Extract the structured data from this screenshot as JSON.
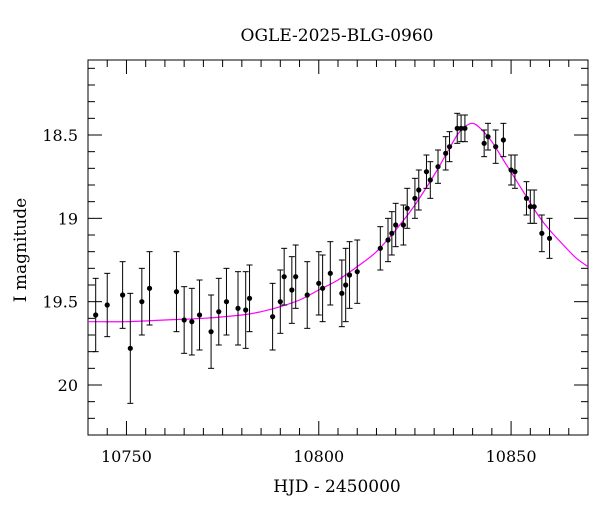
{
  "chart_data": {
    "type": "scatter",
    "title": "OGLE-2025-BLG-0960",
    "xlabel": "HJD - 2450000",
    "ylabel": "I magnitude",
    "xlim": [
      10740,
      10870
    ],
    "ylim": [
      20.3,
      18.05
    ],
    "y_inverted": true,
    "x_ticks": [
      10750,
      10800,
      10850
    ],
    "y_ticks": [
      18.5,
      19,
      19.5,
      20
    ],
    "grid": false,
    "colors": {
      "model": "#ff00ff",
      "points": "#000000",
      "errorbars": "#000000"
    },
    "series": [
      {
        "kind": "points_with_errors",
        "x": [
          10742,
          10745,
          10749,
          10751,
          10754,
          10756,
          10763,
          10765,
          10767,
          10769,
          10772,
          10774,
          10776,
          10779,
          10781,
          10782,
          10788,
          10790,
          10791,
          10793,
          10794,
          10797,
          10800,
          10801,
          10803,
          10806,
          10807,
          10808,
          10810,
          10816,
          10818,
          10819,
          10820,
          10822,
          10823,
          10825,
          10826,
          10828,
          10829,
          10831,
          10833,
          10834,
          10836,
          10837,
          10838,
          10843,
          10844,
          10846,
          10848,
          10850,
          10851,
          10854,
          10855,
          10856,
          10858,
          10860
        ],
        "y": [
          19.58,
          19.52,
          19.46,
          19.78,
          19.5,
          19.42,
          19.44,
          19.61,
          19.62,
          19.58,
          19.68,
          19.56,
          19.5,
          19.54,
          19.55,
          19.48,
          19.59,
          19.5,
          19.35,
          19.43,
          19.35,
          19.46,
          19.39,
          19.42,
          19.33,
          19.45,
          19.4,
          19.34,
          19.32,
          19.18,
          19.13,
          19.09,
          19.04,
          19.04,
          18.94,
          18.88,
          18.83,
          18.72,
          18.77,
          18.69,
          18.61,
          18.57,
          18.46,
          18.46,
          18.46,
          18.55,
          18.51,
          18.57,
          18.53,
          18.71,
          18.72,
          18.88,
          18.93,
          18.93,
          19.09,
          19.12
        ],
        "err": [
          0.22,
          0.19,
          0.2,
          0.33,
          0.2,
          0.22,
          0.24,
          0.2,
          0.2,
          0.21,
          0.22,
          0.2,
          0.2,
          0.22,
          0.23,
          0.2,
          0.2,
          0.19,
          0.17,
          0.2,
          0.19,
          0.2,
          0.19,
          0.2,
          0.19,
          0.2,
          0.22,
          0.2,
          0.19,
          0.13,
          0.13,
          0.13,
          0.13,
          0.12,
          0.12,
          0.12,
          0.12,
          0.1,
          0.11,
          0.1,
          0.1,
          0.09,
          0.09,
          0.08,
          0.08,
          0.08,
          0.08,
          0.1,
          0.1,
          0.09,
          0.1,
          0.1,
          0.1,
          0.1,
          0.11,
          0.12
        ]
      },
      {
        "kind": "model_curve",
        "x": [
          10740,
          10750,
          10760,
          10770,
          10780,
          10785,
          10790,
          10795,
          10800,
          10805,
          10810,
          10815,
          10820,
          10825,
          10830,
          10833,
          10836,
          10838,
          10840,
          10842,
          10845,
          10848,
          10851,
          10854,
          10857,
          10860,
          10864,
          10867,
          10870
        ],
        "y": [
          19.62,
          19.62,
          19.61,
          19.6,
          19.58,
          19.56,
          19.53,
          19.49,
          19.43,
          19.37,
          19.29,
          19.2,
          19.07,
          18.92,
          18.74,
          18.62,
          18.5,
          18.45,
          18.43,
          18.46,
          18.54,
          18.65,
          18.76,
          18.87,
          18.98,
          19.07,
          19.17,
          19.24,
          19.29
        ]
      }
    ]
  }
}
